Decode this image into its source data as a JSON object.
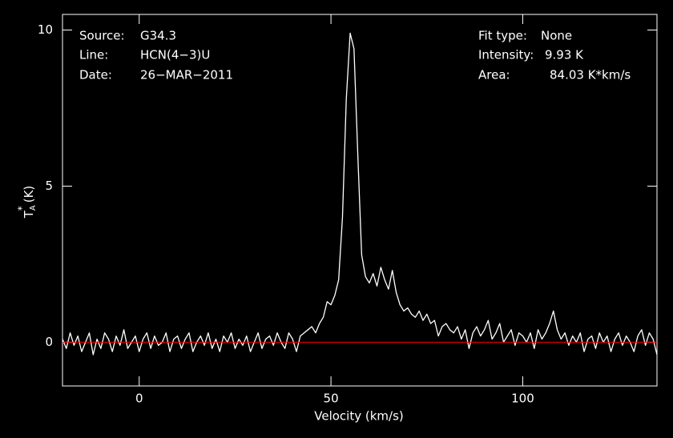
{
  "chart_data": {
    "type": "line",
    "info_left": [
      {
        "label": "Source:",
        "value": "G34.3"
      },
      {
        "label": "Line:",
        "value": "HCN(4−3)U"
      },
      {
        "label": "Date:",
        "value": "26−MAR−2011"
      }
    ],
    "info_right": [
      {
        "label": "Fit type:",
        "value": "None"
      },
      {
        "label": "Intensity:",
        "value": "9.93 K"
      },
      {
        "label": "Area:",
        "value": "84.03 K*km/s"
      }
    ],
    "xlabel": "Velocity (km/s)",
    "ylabel": {
      "main": "T",
      "sub": "A",
      "sup": "*",
      "unit": "(K)"
    },
    "xlim": [
      -20,
      135
    ],
    "ylim": [
      -1.4,
      10.5
    ],
    "xticks": [
      0,
      50,
      100
    ],
    "yticks": [
      0,
      5,
      10
    ],
    "baseline": 0,
    "baseline_color": "#ff0000",
    "x": [
      -20,
      -19,
      -18,
      -17,
      -16,
      -15,
      -14,
      -13,
      -12,
      -11,
      -10,
      -9,
      -8,
      -7,
      -6,
      -5,
      -4,
      -3,
      -2,
      -1,
      0,
      1,
      2,
      3,
      4,
      5,
      6,
      7,
      8,
      9,
      10,
      11,
      12,
      13,
      14,
      15,
      16,
      17,
      18,
      19,
      20,
      21,
      22,
      23,
      24,
      25,
      26,
      27,
      28,
      29,
      30,
      31,
      32,
      33,
      34,
      35,
      36,
      37,
      38,
      39,
      40,
      41,
      42,
      43,
      44,
      45,
      46,
      47,
      48,
      49,
      50,
      51,
      52,
      53,
      54,
      55,
      56,
      57,
      58,
      59,
      60,
      61,
      62,
      63,
      64,
      65,
      66,
      67,
      68,
      69,
      70,
      71,
      72,
      73,
      74,
      75,
      76,
      77,
      78,
      79,
      80,
      81,
      82,
      83,
      84,
      85,
      86,
      87,
      88,
      89,
      90,
      91,
      92,
      93,
      94,
      95,
      96,
      97,
      98,
      99,
      100,
      101,
      102,
      103,
      104,
      105,
      106,
      107,
      108,
      109,
      110,
      111,
      112,
      113,
      114,
      115,
      116,
      117,
      118,
      119,
      120,
      121,
      122,
      123,
      124,
      125,
      126,
      127,
      128,
      129,
      130,
      131,
      132,
      133,
      134,
      135
    ],
    "series": [
      {
        "color": "#ffffff",
        "values": [
          0.1,
          -0.2,
          0.3,
          -0.1,
          0.2,
          -0.3,
          0.0,
          0.3,
          -0.4,
          0.1,
          -0.2,
          0.3,
          0.1,
          -0.3,
          0.2,
          -0.1,
          0.4,
          -0.2,
          0.0,
          0.2,
          -0.3,
          0.1,
          0.3,
          -0.2,
          0.2,
          -0.1,
          0.0,
          0.3,
          -0.3,
          0.1,
          0.2,
          -0.2,
          0.1,
          0.3,
          -0.3,
          0.0,
          0.2,
          -0.1,
          0.3,
          -0.2,
          0.1,
          -0.3,
          0.2,
          0.0,
          0.3,
          -0.2,
          0.1,
          -0.1,
          0.2,
          -0.3,
          0.0,
          0.3,
          -0.2,
          0.1,
          0.2,
          -0.1,
          0.3,
          0.0,
          -0.2,
          0.3,
          0.1,
          -0.3,
          0.2,
          0.3,
          0.4,
          0.5,
          0.3,
          0.6,
          0.8,
          1.3,
          1.2,
          1.5,
          2.0,
          4.0,
          7.8,
          9.9,
          9.4,
          6.0,
          2.8,
          2.1,
          1.9,
          2.2,
          1.8,
          2.4,
          2.0,
          1.7,
          2.3,
          1.6,
          1.2,
          1.0,
          1.1,
          0.9,
          0.8,
          1.0,
          0.7,
          0.9,
          0.6,
          0.7,
          0.2,
          0.5,
          0.6,
          0.4,
          0.3,
          0.5,
          0.1,
          0.4,
          -0.2,
          0.3,
          0.5,
          0.2,
          0.4,
          0.7,
          0.1,
          0.3,
          0.6,
          0.0,
          0.2,
          0.4,
          -0.1,
          0.3,
          0.2,
          0.0,
          0.3,
          -0.2,
          0.4,
          0.1,
          0.3,
          0.6,
          1.0,
          0.4,
          0.1,
          0.3,
          -0.1,
          0.2,
          0.0,
          0.3,
          -0.3,
          0.1,
          0.2,
          -0.2,
          0.3,
          0.0,
          0.2,
          -0.3,
          0.1,
          0.3,
          -0.1,
          0.2,
          0.0,
          -0.3,
          0.2,
          0.4,
          -0.1,
          0.3,
          0.1,
          -0.4
        ]
      }
    ]
  }
}
